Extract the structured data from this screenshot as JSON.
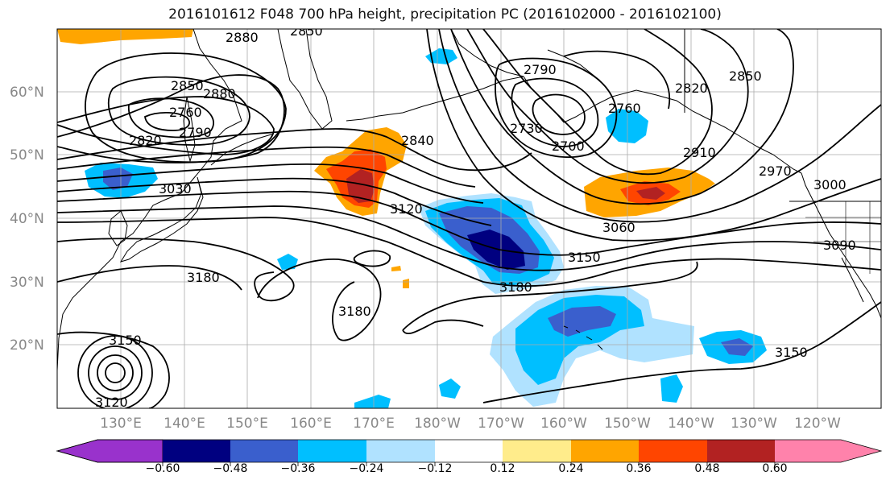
{
  "title": "2016101612 F048 700 hPa height, precipitation PC (2016102000 - 2016102100)",
  "map": {
    "lat_labels": [
      "60°N",
      "50°N",
      "40°N",
      "30°N",
      "20°N"
    ],
    "lon_labels": [
      "130°E",
      "140°E",
      "150°E",
      "160°E",
      "170°E",
      "180°W",
      "170°W",
      "160°W",
      "150°W",
      "140°W",
      "130°W",
      "120°W"
    ],
    "contour_labels": [
      "2880",
      "2850",
      "2850",
      "2880",
      "2790",
      "2790",
      "2850",
      "2820",
      "2820",
      "2760",
      "2730",
      "2700",
      "2760",
      "2840",
      "2910",
      "2970",
      "3000",
      "3030",
      "3120",
      "3060",
      "3150",
      "3090",
      "3180",
      "3180",
      "3180",
      "3150",
      "3150",
      "3120"
    ]
  },
  "colorbar": {
    "ticks": [
      "−0.60",
      "−0.48",
      "−0.36",
      "−0.24",
      "−0.12",
      "0.12",
      "0.24",
      "0.36",
      "0.48",
      "0.60"
    ],
    "colors": [
      "#9932cc",
      "#000080",
      "#3a5fcd",
      "#00bfff",
      "#b0e2ff",
      "#ffffff",
      "#ffec8b",
      "#ffa500",
      "#ff4500",
      "#b22222",
      "#ff82ab"
    ]
  }
}
